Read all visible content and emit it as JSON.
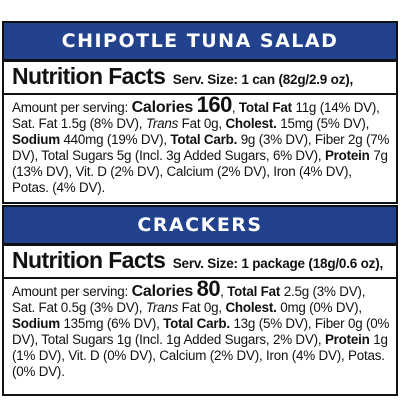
{
  "panels": [
    {
      "banner": "CHIPOTLE TUNA SALAD",
      "nf_title": "Nutrition Facts",
      "serving": "Serv. Size: 1 can (82g/2.9 oz),",
      "amount_label": "Amount per serving:",
      "calories_label": "Calories",
      "calories_value": "160",
      "total_fat_label": "Total Fat",
      "total_fat_value": "11g",
      "seg1": "(14% DV), Sat. Fat 1.5g (8% DV),",
      "trans_label": "Trans",
      "trans_value": "Fat 0g,",
      "cholest_label": "Cholest.",
      "cholest_value": "15mg (5% DV),",
      "sodium_label": "Sodium",
      "sodium_value": "440mg (19% DV),",
      "carb_label": "Total Carb.",
      "carb_value": "9g (3% DV), Fiber 2g (7% DV), Total Sugars 5g (Incl. 3g Added Sugars, 6% DV),",
      "protein_label": "Protein",
      "protein_value": "7g (13% DV), Vit. D (2% DV), Calcium (2% DV), Iron (4% DV), Potas. (4% DV)."
    },
    {
      "banner": "CRACKERS",
      "nf_title": "Nutrition Facts",
      "serving": "Serv. Size: 1 package (18g/0.6 oz),",
      "amount_label": "Amount per serving:",
      "calories_label": "Calories",
      "calories_value": "80",
      "total_fat_label": "Total Fat",
      "total_fat_value": "2.5g (3%",
      "seg1": "DV), Sat. Fat 0.5g (3% DV),",
      "trans_label": "Trans",
      "trans_value": "Fat 0g,",
      "cholest_label": "Cholest.",
      "cholest_value": "0mg (0% DV),",
      "sodium_label": "Sodium",
      "sodium_value": "135mg (6% DV),",
      "carb_label": "Total Carb.",
      "carb_value": "13g (5% DV), Fiber 0g (0% DV), Total Sugars 1g (Incl. 1g Added Sugars, 2% DV),",
      "protein_label": "Protein",
      "protein_value": "1g (1% DV), Vit. D (0% DV), Calcium (2% DV), Iron (4% DV), Potas. (0% DV)."
    }
  ],
  "colors": {
    "banner_bg": "#23428d",
    "banner_text": "#ffffff",
    "text": "#111111"
  }
}
